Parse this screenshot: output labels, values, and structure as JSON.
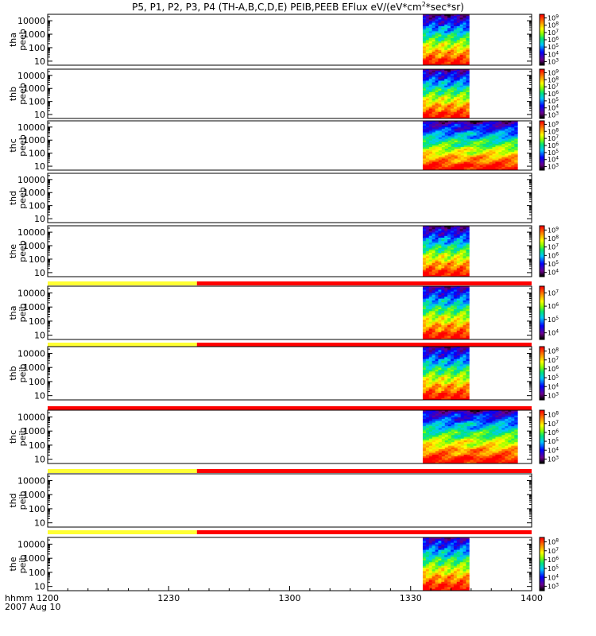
{
  "chart_data": {
    "type": "heatmap",
    "title": "P5, P1, P2, P3, P4 (TH-A,B,C,D,E) PEIB,PEEB EFlux eV/(eV*cm",
    "title_superscript": "2",
    "title_suffix": "*sec*sr)",
    "x_axis": {
      "label": "hhmm",
      "date_label": "2007 Aug 10",
      "range": [
        1200,
        1400
      ],
      "ticks": [
        "1200",
        "1230",
        "1300",
        "1330",
        "1400"
      ]
    },
    "y_axis": {
      "scale": "log",
      "unit": "eV",
      "range": [
        5,
        30000
      ],
      "ticks": [
        "10",
        "100",
        "1000",
        "10000"
      ]
    },
    "colorbar_base": "10",
    "mode_bar_colors": {
      "slow": "#ffff33",
      "fast": "#ff0000"
    },
    "mode_bar_times": {
      "slow": [
        1200,
        1237
      ],
      "fast": [
        1237,
        1400
      ]
    },
    "panels": [
      {
        "probe": "tha",
        "product": "peeb",
        "data_range": [
          1333,
          1344.5
        ],
        "peak_bias": 0.55,
        "colorbar": [
          3,
          4,
          5,
          6,
          7,
          8,
          9
        ],
        "mode_bar": false
      },
      {
        "probe": "thb",
        "product": "peeb",
        "data_range": [
          1333,
          1344.5
        ],
        "peak_bias": 0.45,
        "colorbar": [
          3,
          4,
          5,
          6,
          7,
          8,
          9
        ],
        "mode_bar": false
      },
      {
        "probe": "thc",
        "product": "peeb",
        "data_range": [
          1333,
          1356.5
        ],
        "peak_bias": 0.45,
        "colorbar": [
          3,
          4,
          5,
          6,
          7,
          8,
          9
        ],
        "mode_bar": false
      },
      {
        "probe": "thd",
        "product": "peeb",
        "data_range": null,
        "peak_bias": 0,
        "colorbar": null,
        "mode_bar": false
      },
      {
        "probe": "the",
        "product": "peeb",
        "data_range": [
          1333,
          1344.5
        ],
        "peak_bias": 0.55,
        "colorbar": [
          4,
          5,
          6,
          7,
          8,
          9
        ],
        "mode_bar": false
      },
      {
        "probe": "tha",
        "product": "peib",
        "data_range": [
          1333,
          1344.5
        ],
        "peak_bias": 0.35,
        "colorbar": [
          4,
          5,
          6,
          7
        ],
        "mode_bar": true,
        "mode_bar_split": 1237
      },
      {
        "probe": "thb",
        "product": "peib",
        "data_range": [
          1333,
          1344.5
        ],
        "peak_bias": 0.4,
        "colorbar": [
          3,
          4,
          5,
          6,
          7,
          8
        ],
        "mode_bar": true,
        "mode_bar_split": 1237
      },
      {
        "probe": "thc",
        "product": "peib",
        "data_range": [
          1333,
          1356.5
        ],
        "peak_bias": 0.35,
        "colorbar": [
          3,
          4,
          5,
          6,
          7,
          8
        ],
        "mode_bar": true,
        "mode_bar_split": null
      },
      {
        "probe": "thd",
        "product": "peib",
        "data_range": null,
        "peak_bias": 0,
        "colorbar": null,
        "mode_bar": true,
        "mode_bar_split": 1237
      },
      {
        "probe": "the",
        "product": "peib",
        "data_range": [
          1333,
          1344.5
        ],
        "peak_bias": 0.3,
        "colorbar": [
          3,
          4,
          5,
          6,
          7,
          8
        ],
        "mode_bar": true,
        "mode_bar_split": 1237
      }
    ]
  }
}
